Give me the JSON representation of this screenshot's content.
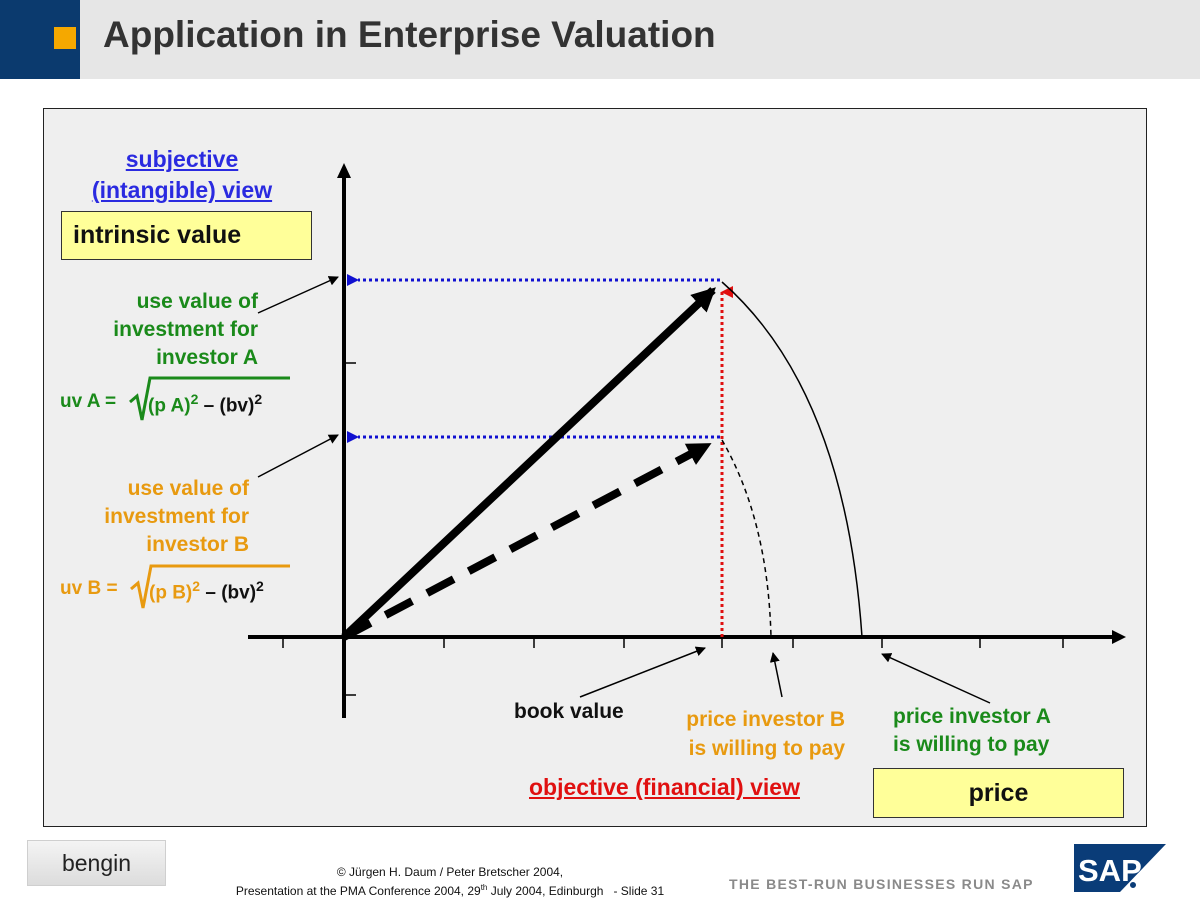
{
  "header": {
    "title": "Application in Enterprise Valuation"
  },
  "labels": {
    "subjective_line1": "subjective",
    "subjective_line2": "(intangible) view",
    "intrinsic_value": "intrinsic value",
    "use_value_a": [
      "use value of",
      "investment for",
      "investor A"
    ],
    "use_value_b": [
      "use value of",
      "investment for",
      "investor B"
    ],
    "book_value": "book value",
    "price_b": [
      "price investor B",
      "is willing to pay"
    ],
    "price_a": [
      "price investor A",
      "is willing to pay"
    ],
    "objective_view": "objective (financial) view",
    "price": "price"
  },
  "formulas": {
    "a": {
      "prefix": "uv A =",
      "term": "(p A)",
      "rest": "– (bv)",
      "exp": "2"
    },
    "b": {
      "prefix": "uv B =",
      "term": "(p B)",
      "rest": "– (bv)",
      "exp": "2"
    }
  },
  "footer": {
    "logo_text": "bengin",
    "copyright": "©  Jürgen H. Daum / Peter Bretscher 2004,",
    "presentation_pre": "Presentation at the PMA Conference 2004, 29",
    "presentation_sup": "th",
    "presentation_post": " July 2004, Edinburgh   - Slide 31",
    "tagline": "THE BEST-RUN BUSINESSES RUN SAP",
    "sap": "SAP"
  },
  "colors": {
    "header_bg": "#e6e6e6",
    "header_accent": "#0b3a6e",
    "header_square": "#f5a800",
    "blue": "#2a2ae0",
    "red": "#e01010",
    "green": "#1a8a1a",
    "orange": "#e89a10",
    "yellow_box": "#ffff99"
  }
}
